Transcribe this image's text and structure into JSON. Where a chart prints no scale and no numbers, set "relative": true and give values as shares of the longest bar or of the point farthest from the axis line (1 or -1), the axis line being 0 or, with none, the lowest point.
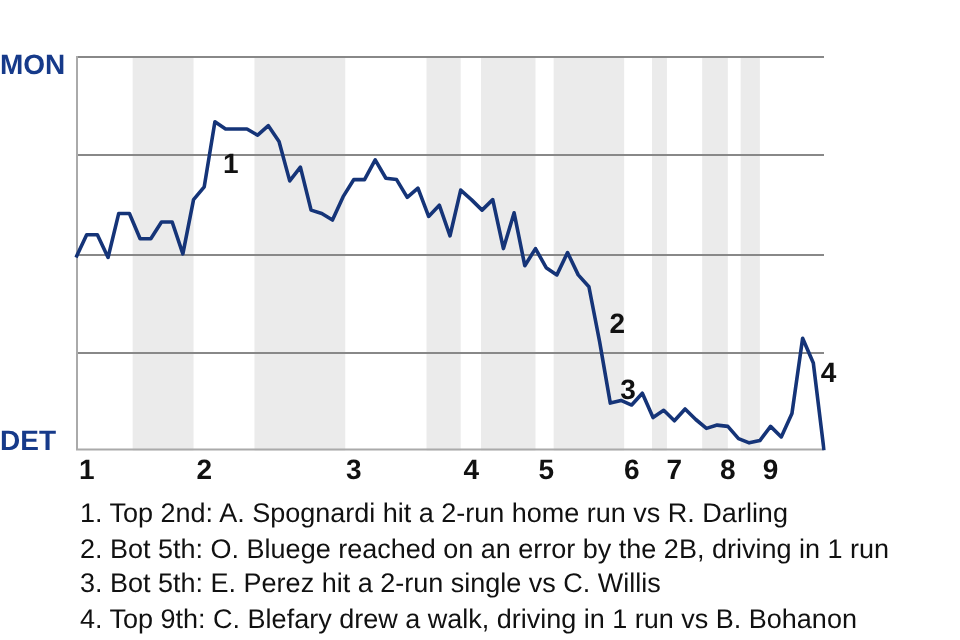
{
  "chart_data": {
    "type": "line",
    "relative": true,
    "categories": [
      null,
      "1",
      null,
      null,
      null,
      null,
      null,
      null,
      null,
      null,
      null,
      null,
      "2",
      null,
      null,
      null,
      null,
      null,
      null,
      null,
      null,
      null,
      null,
      null,
      null,
      null,
      "3",
      null,
      null,
      null,
      null,
      null,
      null,
      null,
      null,
      null,
      null,
      "4",
      null,
      null,
      null,
      null,
      null,
      null,
      "5",
      null,
      null,
      null,
      null,
      null,
      null,
      null,
      "6",
      null,
      null,
      null,
      "7",
      null,
      null,
      null,
      null,
      "8",
      null,
      null,
      null,
      "9",
      null,
      null,
      null,
      null,
      null
    ],
    "grid": "y",
    "legend": false,
    "marker": "none",
    "line_style": "solid",
    "series": [
      {
        "color": "#153478",
        "values": [
          0.587,
          0.656,
          0.656,
          0.587,
          0.721,
          0.721,
          0.644,
          0.644,
          0.695,
          0.695,
          0.598,
          0.763,
          0.802,
          1,
          0.978,
          0.978,
          0.978,
          0.959,
          0.988,
          0.94,
          0.82,
          0.862,
          0.731,
          0.721,
          0.701,
          0.772,
          0.824,
          0.824,
          0.884,
          0.828,
          0.824,
          0.77,
          0.798,
          0.712,
          0.746,
          0.653,
          0.792,
          0.763,
          0.731,
          0.763,
          0.614,
          0.723,
          0.562,
          0.614,
          0.556,
          0.534,
          0.602,
          0.534,
          0.498,
          0.331,
          0.144,
          0.152,
          0.138,
          0.174,
          0.1,
          0.122,
          0.09,
          0.126,
          0.094,
          0.067,
          0.077,
          0.073,
          0.036,
          0.023,
          0.03,
          0.073,
          0.041,
          0.112,
          0.341,
          0.266,
          0
        ]
      }
    ],
    "annotations": [
      "MON",
      "DET",
      "1",
      "2",
      "3",
      "4",
      "1. Top 2nd: A. Spognardi hit a 2-run home run vs R. Darling",
      "2. Bot 5th: O. Bluege reached on an error by the 2B, driving in 1 run",
      "3. Bot 5th: E. Perez hit a 2-run single vs C. Willis",
      "4. Top 9th: C. Blefary drew a walk, driving in 1 run vs B. Bohanon"
    ]
  }
}
